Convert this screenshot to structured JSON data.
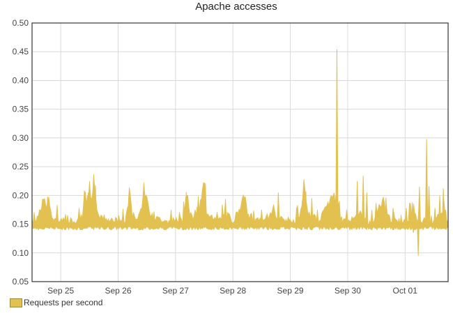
{
  "chart_data": {
    "type": "area",
    "title": "Apache accesses",
    "xlabel": "",
    "ylabel": "",
    "ylim": [
      0.05,
      0.5
    ],
    "yticks": [
      "0.50",
      "0.45",
      "0.40",
      "0.35",
      "0.30",
      "0.25",
      "0.20",
      "0.15",
      "0.10",
      "0.05"
    ],
    "xlim": [
      "2023-09-24T12:00",
      "2023-10-01T18:00"
    ],
    "xticks": [
      {
        "label": "Sep 25",
        "t": "2023-09-25T00:00"
      },
      {
        "label": "Sep 26",
        "t": "2023-09-26T00:00"
      },
      {
        "label": "Sep 27",
        "t": "2023-09-27T00:00"
      },
      {
        "label": "Sep 28",
        "t": "2023-09-28T00:00"
      },
      {
        "label": "Sep 29",
        "t": "2023-09-29T00:00"
      },
      {
        "label": "Sep 30",
        "t": "2023-09-30T00:00"
      },
      {
        "label": "Oct 01",
        "t": "2023-10-01T00:00"
      }
    ],
    "grid": true,
    "legend_position": "bottom-left",
    "series": [
      {
        "name": "Requests per second",
        "color": "#e3c150",
        "points": [
          [
            "2023-09-24T12:00",
            0.15
          ],
          [
            "2023-09-24T14:00",
            0.155
          ],
          [
            "2023-09-24T15:30",
            0.162
          ],
          [
            "2023-09-24T17:00",
            0.19
          ],
          [
            "2023-09-24T18:00",
            0.17
          ],
          [
            "2023-09-24T19:00",
            0.196
          ],
          [
            "2023-09-24T20:00",
            0.16
          ],
          [
            "2023-09-24T21:00",
            0.152
          ],
          [
            "2023-09-25T00:00",
            0.148
          ],
          [
            "2023-09-25T04:00",
            0.152
          ],
          [
            "2023-09-25T07:00",
            0.15
          ],
          [
            "2023-09-25T09:00",
            0.158
          ],
          [
            "2023-09-25T10:00",
            0.19
          ],
          [
            "2023-09-25T11:00",
            0.17
          ],
          [
            "2023-09-25T12:00",
            0.2
          ],
          [
            "2023-09-25T13:00",
            0.185
          ],
          [
            "2023-09-25T14:00",
            0.216
          ],
          [
            "2023-09-25T15:00",
            0.175
          ],
          [
            "2023-09-25T16:00",
            0.158
          ],
          [
            "2023-09-25T19:00",
            0.155
          ],
          [
            "2023-09-25T21:00",
            0.152
          ],
          [
            "2023-09-26T00:00",
            0.15
          ],
          [
            "2023-09-26T03:00",
            0.15
          ],
          [
            "2023-09-26T05:00",
            0.2
          ],
          [
            "2023-09-26T06:00",
            0.16
          ],
          [
            "2023-09-26T08:00",
            0.155
          ],
          [
            "2023-09-26T10:00",
            0.175
          ],
          [
            "2023-09-26T11:00",
            0.19
          ],
          [
            "2023-09-26T12:00",
            0.195
          ],
          [
            "2023-09-26T13:00",
            0.165
          ],
          [
            "2023-09-26T16:00",
            0.153
          ],
          [
            "2023-09-26T19:00",
            0.152
          ],
          [
            "2023-09-26T21:00",
            0.15
          ],
          [
            "2023-09-26T23:00",
            0.15
          ],
          [
            "2023-09-27T00:00",
            0.155
          ],
          [
            "2023-09-27T03:00",
            0.15
          ],
          [
            "2023-09-27T05:00",
            0.205
          ],
          [
            "2023-09-27T06:00",
            0.16
          ],
          [
            "2023-09-27T08:00",
            0.155
          ],
          [
            "2023-09-27T10:00",
            0.17
          ],
          [
            "2023-09-27T12:00",
            0.22
          ],
          [
            "2023-09-27T13:00",
            0.165
          ],
          [
            "2023-09-27T16:00",
            0.155
          ],
          [
            "2023-09-27T19:00",
            0.152
          ],
          [
            "2023-09-27T22:00",
            0.16
          ],
          [
            "2023-09-28T00:00",
            0.15
          ],
          [
            "2023-09-28T02:00",
            0.165
          ],
          [
            "2023-09-28T04:00",
            0.185
          ],
          [
            "2023-09-28T05:00",
            0.198
          ],
          [
            "2023-09-28T06:00",
            0.16
          ],
          [
            "2023-09-28T09:00",
            0.152
          ],
          [
            "2023-09-28T12:00",
            0.15
          ],
          [
            "2023-09-28T14:00",
            0.155
          ],
          [
            "2023-09-28T16:00",
            0.162
          ],
          [
            "2023-09-28T17:00",
            0.175
          ],
          [
            "2023-09-28T18:00",
            0.158
          ],
          [
            "2023-09-28T20:00",
            0.152
          ],
          [
            "2023-09-28T22:00",
            0.15
          ],
          [
            "2023-09-29T00:00",
            0.152
          ],
          [
            "2023-09-29T02:00",
            0.15
          ],
          [
            "2023-09-29T04:00",
            0.16
          ],
          [
            "2023-09-29T05:00",
            0.175
          ],
          [
            "2023-09-29T06:00",
            0.206
          ],
          [
            "2023-09-29T07:00",
            0.17
          ],
          [
            "2023-09-29T09:00",
            0.155
          ],
          [
            "2023-09-29T12:00",
            0.152
          ],
          [
            "2023-09-29T14:00",
            0.165
          ],
          [
            "2023-09-29T16:00",
            0.18
          ],
          [
            "2023-09-29T18:00",
            0.2
          ],
          [
            "2023-09-29T20:00",
            0.16
          ],
          [
            "2023-09-29T22:00",
            0.15
          ],
          [
            "2023-09-30T00:00",
            0.15
          ],
          [
            "2023-09-30T02:00",
            0.155
          ],
          [
            "2023-09-30T04:00",
            0.165
          ],
          [
            "2023-09-30T06:00",
            0.16
          ],
          [
            "2023-09-30T08:00",
            0.15
          ],
          [
            "2023-09-30T10:00",
            0.145
          ],
          [
            "2023-09-30T12:00",
            0.16
          ],
          [
            "2023-09-30T14:00",
            0.178
          ],
          [
            "2023-09-30T15:00",
            0.19
          ],
          [
            "2023-09-30T16:00",
            0.16
          ],
          [
            "2023-09-30T18:00",
            0.152
          ],
          [
            "2023-09-30T21:00",
            0.15
          ],
          [
            "2023-10-01T00:00",
            0.15
          ],
          [
            "2023-10-01T02:00",
            0.155
          ],
          [
            "2023-10-01T04:00",
            0.16
          ],
          [
            "2023-10-01T06:00",
            0.15
          ],
          [
            "2023-10-01T09:00",
            0.152
          ],
          [
            "2023-10-01T12:00",
            0.148
          ],
          [
            "2023-10-01T14:00",
            0.165
          ],
          [
            "2023-10-01T16:00",
            0.158
          ],
          [
            "2023-10-01T18:00",
            0.15
          ]
        ],
        "spikes": [
          [
            "2023-09-24T15:00",
            0.165
          ],
          [
            "2023-09-24T18:30",
            0.198
          ],
          [
            "2023-09-25T04:30",
            0.16
          ],
          [
            "2023-09-25T11:30",
            0.205
          ],
          [
            "2023-09-25T14:30",
            0.218
          ],
          [
            "2023-09-26T04:30",
            0.201
          ],
          [
            "2023-09-26T11:30",
            0.197
          ],
          [
            "2023-09-26T15:00",
            0.172
          ],
          [
            "2023-09-27T04:30",
            0.206
          ],
          [
            "2023-09-27T09:00",
            0.18
          ],
          [
            "2023-09-27T12:30",
            0.221
          ],
          [
            "2023-09-28T04:30",
            0.2
          ],
          [
            "2023-09-28T12:00",
            0.175
          ],
          [
            "2023-09-28T19:00",
            0.205
          ],
          [
            "2023-09-29T05:00",
            0.19
          ],
          [
            "2023-09-29T06:30",
            0.207
          ],
          [
            "2023-09-29T09:00",
            0.195
          ],
          [
            "2023-09-29T15:00",
            0.18
          ],
          [
            "2023-09-29T19:00",
            0.2
          ],
          [
            "2023-09-29T19:30",
            0.454
          ],
          [
            "2023-09-30T04:00",
            0.225
          ],
          [
            "2023-09-30T06:30",
            0.234
          ],
          [
            "2023-09-30T08:00",
            0.205
          ],
          [
            "2023-09-30T16:00",
            0.196
          ],
          [
            "2023-09-30T19:00",
            0.178
          ],
          [
            "2023-10-01T00:30",
            0.178
          ],
          [
            "2023-10-01T03:00",
            0.188
          ],
          [
            "2023-10-01T06:00",
            0.215
          ],
          [
            "2023-10-01T09:00",
            0.298
          ],
          [
            "2023-10-01T10:00",
            0.216
          ],
          [
            "2023-10-01T12:30",
            0.178
          ],
          [
            "2023-10-01T14:30",
            0.2
          ],
          [
            "2023-10-01T16:00",
            0.212
          ],
          [
            "2023-10-01T17:00",
            0.175
          ]
        ],
        "dips": [
          [
            "2023-10-01T05:30",
            0.095
          ],
          [
            "2023-10-01T03:30",
            0.135
          ],
          [
            "2023-09-26T10:00",
            0.14
          ]
        ]
      }
    ]
  }
}
